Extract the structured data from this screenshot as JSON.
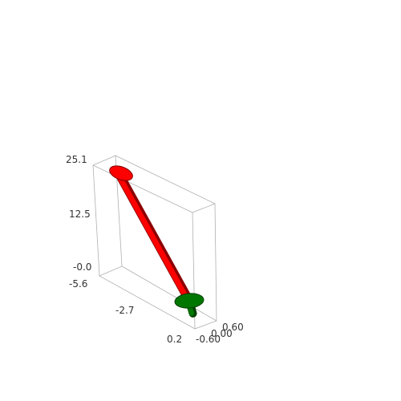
{
  "chart_data": {
    "type": "3d-tube",
    "title": "",
    "axes": {
      "x": {
        "label": "",
        "ticks": [
          "-5.6",
          "-2.7",
          "0.2"
        ]
      },
      "y": {
        "label": "",
        "ticks": [
          "-0.60",
          "0.00",
          "0.60"
        ]
      },
      "z": {
        "label": "",
        "ticks": [
          "-0.0",
          "12.5",
          "25.1"
        ],
        "range": [
          -0.0,
          25.1
        ]
      }
    },
    "series": [
      {
        "color": "#ff0000",
        "segment": {
          "start": {
            "x": -5.6,
            "z": 25.1
          },
          "end": {
            "x": 0.2,
            "z": 0.0
          }
        }
      },
      {
        "color": "#007700",
        "segment": {
          "start": {
            "x": 0.2,
            "z": 0.0
          },
          "end": {
            "x": 0.5,
            "z": -2.5
          }
        }
      }
    ],
    "grid": false,
    "box": true
  }
}
